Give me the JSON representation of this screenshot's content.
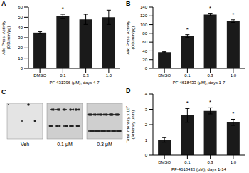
{
  "chart_data": [
    {
      "panel": "A",
      "type": "bar",
      "categories": [
        "DMSO",
        "0.1",
        "0.3",
        "1.0"
      ],
      "values": [
        35,
        51,
        48,
        50
      ],
      "errors": [
        1,
        2,
        5,
        7
      ],
      "significance": [
        null,
        "*",
        null,
        null
      ],
      "color": "#1a1a1a",
      "ylabel": "Alk. Phos. Activity (OD/min/μg)",
      "xlabel": "PF-431396 (μM), days 4-7",
      "ylim": [
        0,
        60
      ],
      "yticks": [
        0,
        10,
        20,
        30,
        40,
        50,
        60
      ]
    },
    {
      "panel": "B",
      "type": "bar",
      "categories": [
        "DMSO",
        "0.1",
        "0.3",
        "1.0"
      ],
      "values": [
        37,
        74,
        123,
        108
      ],
      "errors": [
        1,
        3,
        3,
        3
      ],
      "significance": [
        null,
        "*",
        "*",
        "*"
      ],
      "color": "#1a1a1a",
      "ylabel": "Alk. Phos. Activity (OD/min/μg)",
      "xlabel": "PF-4618433 (μM), days 1-7",
      "ylim": [
        0,
        140
      ],
      "yticks": [
        0,
        20,
        40,
        60,
        80,
        100,
        120,
        140
      ]
    },
    {
      "panel": "C",
      "type": "image",
      "categories": [
        "Veh",
        "0.1 μM",
        "0.3 μM"
      ]
    },
    {
      "panel": "D",
      "type": "bar",
      "categories": [
        "DMSO",
        "0.1",
        "0.3",
        "1.0"
      ],
      "values": [
        1.0,
        2.6,
        2.9,
        2.15
      ],
      "errors": [
        0.15,
        0.45,
        0.2,
        0.2
      ],
      "significance": [
        null,
        "*",
        "*",
        "*"
      ],
      "color": "#1a1a1a",
      "ylabel": "Total Intensity x 10⁷ (Arbitrary units)",
      "xlabel": "PF-4618433 (μM), days 1-14",
      "ylim": [
        0,
        4
      ],
      "yticks": [
        0,
        1,
        2,
        3,
        4
      ]
    }
  ]
}
